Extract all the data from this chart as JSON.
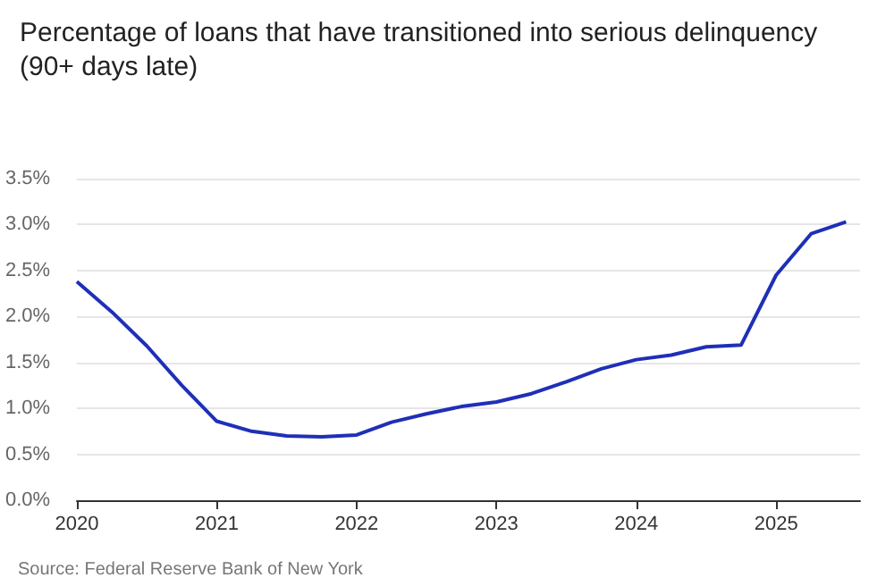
{
  "chart_data": {
    "type": "line",
    "title": "Percentage of loans that have transitioned into serious delinquency\n(90+ days late)",
    "annotations": [
      "Source: Federal Reserve Bank of New York"
    ],
    "x": [
      2020,
      2020.25,
      2020.5,
      2020.75,
      2021,
      2021.25,
      2021.5,
      2021.75,
      2022,
      2022.25,
      2022.5,
      2022.75,
      2023,
      2023.25,
      2023.5,
      2023.75,
      2024,
      2024.25,
      2024.5,
      2024.75,
      2025,
      2025.25,
      2025.5
    ],
    "series": [
      {
        "color": "#1f2fb8",
        "values": [
          2.38,
          2.05,
          1.68,
          1.25,
          0.86,
          0.75,
          0.7,
          0.69,
          0.71,
          0.85,
          0.94,
          1.02,
          1.07,
          1.16,
          1.29,
          1.43,
          1.53,
          1.58,
          1.67,
          1.69,
          2.45,
          2.9,
          3.03
        ]
      }
    ],
    "xlim": [
      2020,
      2025.6
    ],
    "xticks": [
      2020,
      2021,
      2022,
      2023,
      2024,
      2025
    ],
    "ylim": [
      0,
      3.5
    ],
    "yticks": [
      {
        "value": 0,
        "label": "0.0%"
      },
      {
        "value": 0.5,
        "label": "0.5%"
      },
      {
        "value": 1,
        "label": "1.0%"
      },
      {
        "value": 1.5,
        "label": "1.5%"
      },
      {
        "value": 2,
        "label": "2.0%"
      },
      {
        "value": 2.5,
        "label": "2.5%"
      },
      {
        "value": 3,
        "label": "3.0%"
      },
      {
        "value": 3.5,
        "label": "3.5%"
      }
    ],
    "grid": "y",
    "marker": "none",
    "line_style": "solid"
  }
}
